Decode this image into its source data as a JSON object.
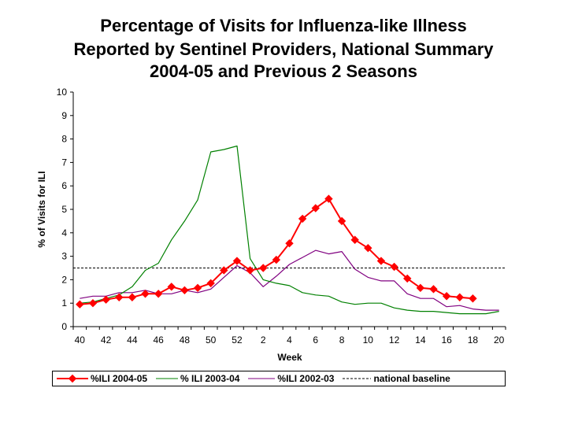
{
  "chart_data": {
    "type": "line",
    "title_lines": [
      "Percentage of Visits for Influenza-like Illness",
      "Reported by Sentinel Providers, National Summary",
      "2004-05 and Previous 2 Seasons"
    ],
    "xlabel": "Week",
    "ylabel": "% of Visits for ILI",
    "ylim": [
      0,
      10
    ],
    "yticks": [
      0,
      1,
      2,
      3,
      4,
      5,
      6,
      7,
      8,
      9,
      10
    ],
    "weeks": [
      "40",
      "41",
      "42",
      "43",
      "44",
      "45",
      "46",
      "47",
      "48",
      "49",
      "50",
      "51",
      "52",
      "1",
      "2",
      "3",
      "4",
      "5",
      "6",
      "7",
      "8",
      "9",
      "10",
      "11",
      "12",
      "13",
      "14",
      "15",
      "16",
      "17",
      "18",
      "19",
      "20"
    ],
    "xtick_labels": [
      "40",
      "42",
      "44",
      "46",
      "48",
      "50",
      "52",
      "2",
      "4",
      "6",
      "8",
      "10",
      "12",
      "14",
      "16",
      "18",
      "20"
    ],
    "series": [
      {
        "name": "%ILI 2004-05",
        "color": "#ff0000",
        "marker": "diamond",
        "values": [
          0.95,
          1.0,
          1.15,
          1.25,
          1.25,
          1.4,
          1.4,
          1.7,
          1.55,
          1.65,
          1.85,
          2.4,
          2.8,
          2.4,
          2.5,
          2.85,
          3.55,
          4.6,
          5.05,
          5.45,
          4.5,
          3.7,
          3.35,
          2.8,
          2.55,
          2.05,
          1.65,
          1.6,
          1.3,
          1.25,
          1.2
        ]
      },
      {
        "name": "% ILI 2003-04",
        "color": "#008000",
        "marker": "none",
        "values": [
          1.0,
          1.05,
          1.2,
          1.35,
          1.7,
          2.4,
          2.7,
          3.7,
          4.5,
          5.4,
          7.45,
          7.55,
          7.7,
          2.9,
          2.0,
          1.85,
          1.75,
          1.45,
          1.35,
          1.3,
          1.05,
          0.95,
          1.0,
          1.0,
          0.8,
          0.7,
          0.65,
          0.65,
          0.6,
          0.55,
          0.55,
          0.55,
          0.65
        ]
      },
      {
        "name": "%ILI 2002-03",
        "color": "#800080",
        "marker": "none",
        "values": [
          1.2,
          1.3,
          1.3,
          1.45,
          1.45,
          1.55,
          1.4,
          1.4,
          1.55,
          1.45,
          1.6,
          2.1,
          2.6,
          2.3,
          1.7,
          2.15,
          2.65,
          2.95,
          3.25,
          3.1,
          3.2,
          2.45,
          2.1,
          1.95,
          1.95,
          1.4,
          1.2,
          1.2,
          0.85,
          0.9,
          0.75,
          0.7,
          0.7
        ]
      }
    ],
    "baseline": {
      "name": "national baseline",
      "value": 2.5,
      "color": "#000000"
    },
    "grid": false,
    "legend_position": "bottom"
  }
}
